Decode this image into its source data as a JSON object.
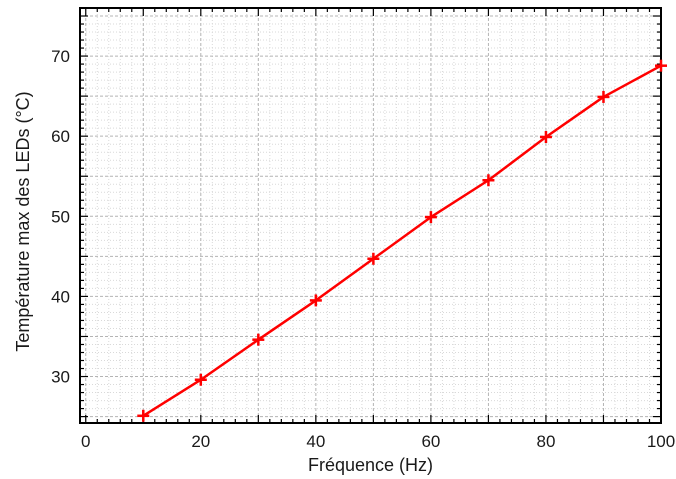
{
  "chart_data": {
    "type": "line",
    "title": "",
    "xlabel": "Fréquence (Hz)",
    "ylabel": "Température max des LEDs (°C)",
    "xlim": [
      -1,
      100
    ],
    "ylim": [
      24.2,
      76
    ],
    "x_ticks": [
      0,
      20,
      40,
      60,
      80,
      100
    ],
    "y_ticks": [
      30,
      40,
      50,
      60,
      70
    ],
    "grid": true,
    "series": [
      {
        "color": "#ff0000",
        "marker": "plus",
        "points": [
          {
            "x": 10,
            "y": 25.1
          },
          {
            "x": 20,
            "y": 29.6
          },
          {
            "x": 30,
            "y": 34.6
          },
          {
            "x": 40,
            "y": 39.5
          },
          {
            "x": 50,
            "y": 44.7
          },
          {
            "x": 60,
            "y": 49.9
          },
          {
            "x": 70,
            "y": 54.5
          },
          {
            "x": 80,
            "y": 59.9
          },
          {
            "x": 90,
            "y": 64.9
          },
          {
            "x": 100,
            "y": 68.8
          }
        ]
      }
    ]
  }
}
